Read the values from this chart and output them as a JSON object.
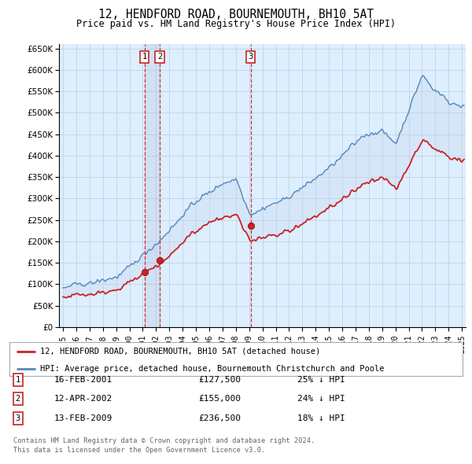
{
  "title": "12, HENDFORD ROAD, BOURNEMOUTH, BH10 5AT",
  "subtitle": "Price paid vs. HM Land Registry's House Price Index (HPI)",
  "legend_line1": "12, HENDFORD ROAD, BOURNEMOUTH, BH10 5AT (detached house)",
  "legend_line2": "HPI: Average price, detached house, Bournemouth Christchurch and Poole",
  "footer1": "Contains HM Land Registry data © Crown copyright and database right 2024.",
  "footer2": "This data is licensed under the Open Government Licence v3.0.",
  "transactions": [
    {
      "id": 1,
      "date": "16-FEB-2001",
      "price": 127500,
      "pct": "25%",
      "dir": "↓",
      "year": 2001.12
    },
    {
      "id": 2,
      "date": "12-APR-2002",
      "price": 155000,
      "pct": "24%",
      "dir": "↓",
      "year": 2002.28
    },
    {
      "id": 3,
      "date": "13-FEB-2009",
      "price": 236500,
      "pct": "18%",
      "dir": "↓",
      "year": 2009.12
    }
  ],
  "hpi_color": "#5588bb",
  "hpi_fill_color": "#c8d8ee",
  "price_color": "#cc2222",
  "dashed_line_color": "#cc2222",
  "shade_fill_color": "#ddeeff",
  "background_color": "#ddeeff",
  "grid_color": "#bbccdd",
  "ylim": [
    0,
    660000
  ],
  "yticks": [
    0,
    50000,
    100000,
    150000,
    200000,
    250000,
    300000,
    350000,
    400000,
    450000,
    500000,
    550000,
    600000,
    650000
  ],
  "xlim_start": 1994.7,
  "xlim_end": 2025.3
}
